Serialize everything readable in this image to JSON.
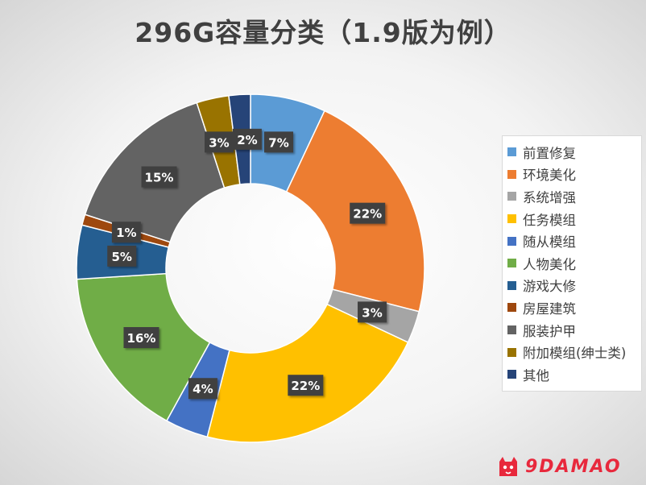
{
  "title": "296G容量分类（1.9版为例）",
  "chart_data": {
    "type": "pie",
    "title": "296G容量分类（1.9版为例）",
    "donut": true,
    "legend_position": "right",
    "series": [
      {
        "name": "前置修复",
        "value": 7,
        "label": "7%",
        "color": "#5b9bd5"
      },
      {
        "name": "环境美化",
        "value": 22,
        "label": "22%",
        "color": "#ed7d31"
      },
      {
        "name": "系统增强",
        "value": 3,
        "label": "3%",
        "color": "#a5a5a5"
      },
      {
        "name": "任务模组",
        "value": 22,
        "label": "22%",
        "color": "#ffc000"
      },
      {
        "name": "随从模组",
        "value": 4,
        "label": "4%",
        "color": "#4472c4"
      },
      {
        "name": "人物美化",
        "value": 16,
        "label": "16%",
        "color": "#70ad47"
      },
      {
        "name": "游戏大修",
        "value": 5,
        "label": "5%",
        "color": "#255e91"
      },
      {
        "name": "房屋建筑",
        "value": 1,
        "label": "1%",
        "color": "#9e480e"
      },
      {
        "name": "服装护甲",
        "value": 15,
        "label": "15%",
        "color": "#636363"
      },
      {
        "name": "附加模组(绅士类)",
        "value": 3,
        "label": "3%",
        "color": "#997300"
      },
      {
        "name": "其他",
        "value": 2,
        "label": "2%",
        "color": "#264478"
      }
    ]
  },
  "watermark": {
    "text": "9DAMAO",
    "logo_icon": "cat-logo-icon"
  }
}
